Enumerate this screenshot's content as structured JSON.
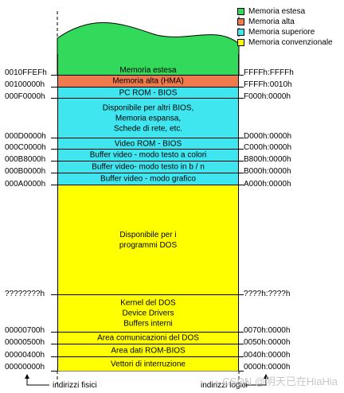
{
  "legend": [
    {
      "label": "Memoria estesa",
      "color": "#33d95b"
    },
    {
      "label": "Memoria alta",
      "color": "#f07a4c"
    },
    {
      "label": "Memoria superiore",
      "color": "#3fe6ef"
    },
    {
      "label": "Memoria convenzionale",
      "color": "#ffff00"
    }
  ],
  "segments": [
    {
      "label": "Memoria estesa",
      "color": "#33d95b"
    },
    {
      "label": "Memoria alta (HMA)",
      "color": "#f07a4c"
    },
    {
      "label": "PC ROM - BIOS",
      "color": "#3fe6ef"
    },
    {
      "label": "Disponibile per altri BIOS,\nMemoria espansa,\nSchede di rete, etc.",
      "color": "#3fe6ef"
    },
    {
      "label": "Video ROM - BIOS",
      "color": "#3fe6ef"
    },
    {
      "label": "Buffer video - modo testo a colori",
      "color": "#3fe6ef"
    },
    {
      "label": "Buffer video- modo testo in b / n",
      "color": "#3fe6ef"
    },
    {
      "label": "Buffer video - modo grafico",
      "color": "#3fe6ef"
    },
    {
      "label": "Disponibile per i\nprogrammi DOS",
      "color": "#ffff00"
    },
    {
      "label": "Kernel del DOS\nDevice Drivers\nBuffers interni",
      "color": "#ffff00"
    },
    {
      "label": "Area comunicazioni del DOS",
      "color": "#ffff00"
    },
    {
      "label": "Area dati ROM-BIOS",
      "color": "#ffff00"
    },
    {
      "label": "Vettori di interruzione",
      "color": "#ffff00"
    }
  ],
  "physical_addresses": [
    "0010FFEFh",
    "00100000h",
    "000F0000h",
    "000D0000h",
    "000C0000h",
    "000B8000h",
    "000B0000h",
    "000A0000h",
    "????????h",
    "00000700h",
    "00000500h",
    "00000400h",
    "00000000h"
  ],
  "logical_addresses": [
    "FFFFh:FFFFh",
    "FFFFh:0010h",
    "F000h:0000h",
    "D000h:0000h",
    "C000h:0000h",
    "B800h:0000h",
    "B000h:0000h",
    "A000h:0000h",
    "????h:????h",
    "0070h:0000h",
    "0050h:0000h",
    "0040h:0000h",
    "0000h:0000h"
  ],
  "footer": {
    "physical_label": "indirizzi fisici",
    "logical_label": "indirizzi logici"
  },
  "watermark": "CSDN @明天已在HiaHia"
}
